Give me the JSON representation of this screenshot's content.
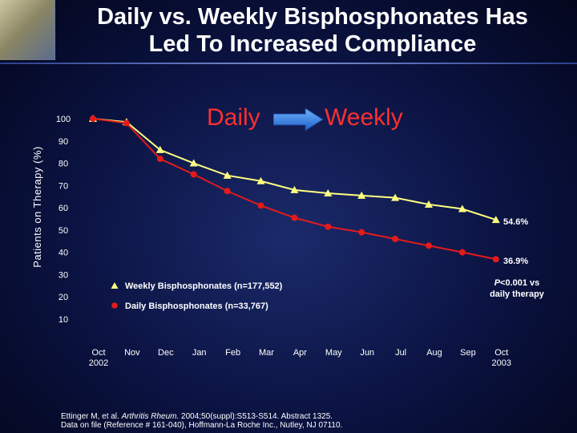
{
  "slide": {
    "title_line1": "Daily vs. Weekly Bisphosphonates Has",
    "title_line2": "Led To Increased Compliance",
    "logo": "skeletal-hip-image"
  },
  "banner": {
    "daily": "Daily",
    "weekly": "Weekly",
    "arrow_color": "#2f7fe0"
  },
  "colors": {
    "weekly": "#ffff80",
    "daily": "#e31b1b"
  },
  "legend": {
    "weekly": "Weekly Bisphosphonates (n=177,552)",
    "daily": "Daily Bisphosphonates (n=33,767)"
  },
  "end_labels": {
    "weekly": "54.6%",
    "daily": "36.9%"
  },
  "pvalue": {
    "p": "P",
    "line1_rest": "<0.001 vs",
    "line2": "daily therapy"
  },
  "citation": {
    "line1_pre": "Ettinger M, et al. ",
    "line1_journal": "Arthritis Rheum.",
    "line1_post": " 2004;50(suppl):S513-S514. Abstract 1325.",
    "line2": "Data on file (Reference # 161-040), Hoffmann-La Roche Inc., Nutley, NJ 07110."
  },
  "chart_data": {
    "type": "line",
    "ylabel": "Patients on Therapy (%)",
    "xlabel": "",
    "ylim": [
      10,
      100
    ],
    "yticks": [
      100,
      90,
      80,
      70,
      60,
      50,
      40,
      30,
      20,
      10
    ],
    "categories": [
      [
        "Oct",
        "2002"
      ],
      [
        "Nov"
      ],
      [
        "Dec"
      ],
      [
        "Jan"
      ],
      [
        "Feb"
      ],
      [
        "Mar"
      ],
      [
        "Apr"
      ],
      [
        "May"
      ],
      [
        "Jun"
      ],
      [
        "Jul"
      ],
      [
        "Aug"
      ],
      [
        "Sep"
      ],
      [
        "Oct",
        "2003"
      ]
    ],
    "series": [
      {
        "name": "Weekly Bisphosphonates (n=177,552)",
        "marker": "triangle",
        "values": [
          100,
          98.5,
          86,
          80,
          74.5,
          72,
          68,
          66.5,
          65.5,
          64.5,
          61.5,
          59.5,
          54.6
        ]
      },
      {
        "name": "Daily Bisphosphonates (n=33,767)",
        "marker": "circle",
        "values": [
          100,
          98,
          82,
          75,
          67.5,
          61,
          55.5,
          51.5,
          49,
          46,
          43,
          40,
          36.9
        ]
      }
    ]
  }
}
